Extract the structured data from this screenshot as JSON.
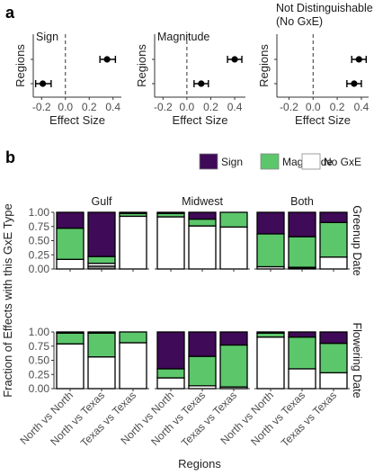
{
  "panel_a_label": "a",
  "panel_b_label": "b",
  "chart_data": [
    {
      "type": "scatter",
      "panel": "a",
      "title": "Sign",
      "xlabel": "Effect Size",
      "ylabel": "Regions",
      "xticks": [
        -0.2,
        0.0,
        0.2,
        0.4
      ],
      "xtick_labels": [
        "-0.2",
        "0.0",
        "0.2",
        "0.4"
      ],
      "xlim": [
        -0.27,
        0.47
      ],
      "reference_line": 0,
      "points": [
        {
          "row": 1,
          "estimate": 0.35,
          "lower": 0.29,
          "upper": 0.42
        },
        {
          "row": 2,
          "estimate": -0.19,
          "lower": -0.25,
          "upper": -0.12
        }
      ]
    },
    {
      "type": "scatter",
      "panel": "a",
      "title": "Magnitude",
      "xlabel": "Effect Size",
      "ylabel": "Regions",
      "xticks": [
        -0.2,
        0.0,
        0.2,
        0.4
      ],
      "xtick_labels": [
        "-0.2",
        "0.0",
        "0.2",
        "0.4"
      ],
      "xlim": [
        -0.27,
        0.49
      ],
      "reference_line": 0,
      "points": [
        {
          "row": 1,
          "estimate": 0.4,
          "lower": 0.34,
          "upper": 0.46
        },
        {
          "row": 2,
          "estimate": 0.12,
          "lower": 0.06,
          "upper": 0.18
        }
      ]
    },
    {
      "type": "scatter",
      "panel": "a",
      "title": "Not Distinguishable\n(No GxE)",
      "xlabel": "Effect Size",
      "ylabel": "Regions",
      "xticks": [
        -0.2,
        0.0,
        0.2,
        0.4
      ],
      "xtick_labels": [
        "-0.2",
        "0.0",
        "0.2",
        "0.4"
      ],
      "xlim": [
        -0.3,
        0.46
      ],
      "reference_line": 0,
      "points": [
        {
          "row": 1,
          "estimate": 0.38,
          "lower": 0.32,
          "upper": 0.44
        },
        {
          "row": 2,
          "estimate": 0.34,
          "lower": 0.28,
          "upper": 0.4
        }
      ]
    },
    {
      "type": "bar",
      "panel": "b",
      "stacked": true,
      "xlabel": "Regions",
      "ylabel": "Fraction of Effects with this GxE Type",
      "ylim": [
        0,
        1
      ],
      "yticks": [
        0.0,
        0.25,
        0.5,
        0.75,
        1.0
      ],
      "ytick_labels": [
        "0.00",
        "0.25",
        "0.50",
        "0.75",
        "1.00"
      ],
      "legend": {
        "placement": "top-right",
        "entries": [
          {
            "name": "Sign",
            "color": "#3F0A57"
          },
          {
            "name": "Magnitude",
            "color": "#5CC66B"
          },
          {
            "name": "No GxE",
            "color": "#FFFFFF"
          }
        ]
      },
      "extra_segment_color": "#8C8C8C",
      "categories": [
        "North vs North",
        "North vs Texas",
        "Texas vs Texas"
      ],
      "column_facets": [
        "Gulf",
        "Midwest",
        "Both"
      ],
      "row_facets": [
        "Greenup Date",
        "Flowering Date"
      ],
      "facets": [
        {
          "row": "Greenup Date",
          "col": "Gulf",
          "bars": [
            {
              "category": "North vs North",
              "No GxE": 0.17,
              "Magnitude": 0.55,
              "Sign": 0.28
            },
            {
              "category": "North vs Texas",
              "Other": 0.05,
              "No GxE": 0.05,
              "Magnitude": 0.12,
              "Sign": 0.78
            },
            {
              "category": "Texas vs Texas",
              "No GxE": 0.93,
              "Magnitude": 0.05,
              "Sign": 0.02
            }
          ]
        },
        {
          "row": "Greenup Date",
          "col": "Midwest",
          "bars": [
            {
              "category": "North vs North",
              "No GxE": 0.92,
              "Magnitude": 0.06,
              "Sign": 0.02
            },
            {
              "category": "North vs Texas",
              "No GxE": 0.76,
              "Magnitude": 0.12,
              "Sign": 0.12
            },
            {
              "category": "Texas vs Texas",
              "No GxE": 0.74,
              "Magnitude": 0.26,
              "Sign": 0.0
            }
          ]
        },
        {
          "row": "Greenup Date",
          "col": "Both",
          "bars": [
            {
              "category": "North vs North",
              "No GxE": 0.04,
              "Magnitude": 0.58,
              "Sign": 0.38
            },
            {
              "category": "North vs Texas",
              "Other": 0.01,
              "No GxE": 0.02,
              "Magnitude": 0.54,
              "Sign": 0.43
            },
            {
              "category": "Texas vs Texas",
              "No GxE": 0.21,
              "Magnitude": 0.61,
              "Sign": 0.18
            }
          ]
        },
        {
          "row": "Flowering Date",
          "col": "Gulf",
          "bars": [
            {
              "category": "North vs North",
              "No GxE": 0.79,
              "Magnitude": 0.19,
              "Sign": 0.02
            },
            {
              "category": "North vs Texas",
              "No GxE": 0.56,
              "Magnitude": 0.42,
              "Sign": 0.02
            },
            {
              "category": "Texas vs Texas",
              "No GxE": 0.81,
              "Magnitude": 0.19,
              "Sign": 0.0
            }
          ]
        },
        {
          "row": "Flowering Date",
          "col": "Midwest",
          "bars": [
            {
              "category": "North vs North",
              "No GxE": 0.19,
              "Magnitude": 0.16,
              "Sign": 0.65
            },
            {
              "category": "North vs Texas",
              "No GxE": 0.05,
              "Magnitude": 0.52,
              "Sign": 0.43
            },
            {
              "category": "Texas vs Texas",
              "No GxE": 0.03,
              "Magnitude": 0.74,
              "Sign": 0.23
            }
          ]
        },
        {
          "row": "Flowering Date",
          "col": "Both",
          "bars": [
            {
              "category": "North vs North",
              "No GxE": 0.91,
              "Magnitude": 0.07,
              "Sign": 0.02
            },
            {
              "category": "North vs Texas",
              "No GxE": 0.35,
              "Magnitude": 0.56,
              "Sign": 0.09
            },
            {
              "category": "Texas vs Texas",
              "No GxE": 0.28,
              "Magnitude": 0.52,
              "Sign": 0.2
            }
          ]
        }
      ]
    }
  ]
}
